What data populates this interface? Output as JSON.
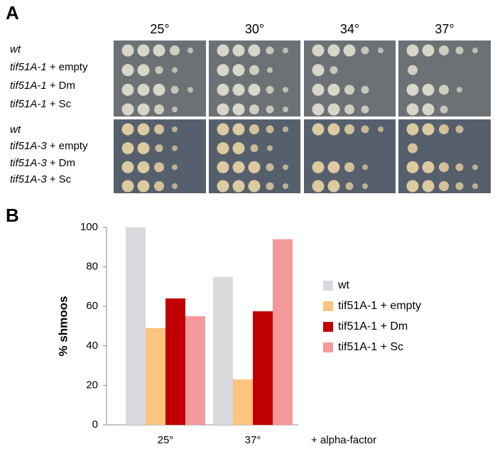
{
  "panel_a": {
    "label": "A",
    "temperatures": [
      "25°",
      "30°",
      "34°",
      "37°"
    ],
    "rows": [
      [
        "wt"
      ],
      [
        "tif51A-1",
        "+ empty"
      ],
      [
        "tif51A-1",
        "+ Dm"
      ],
      [
        "tif51A-1",
        "+ Sc"
      ],
      [
        "wt"
      ],
      [
        "tif51A-3",
        "+ empty"
      ],
      [
        "tif51A-3",
        "+ Dm"
      ],
      [
        "tif51A-3",
        "+ Sc"
      ]
    ]
  },
  "panel_b": {
    "label": "B"
  },
  "chart_data": {
    "type": "bar",
    "ylabel": "% shmoos",
    "annotation": "+ alpha-factor",
    "categories": [
      "25°",
      "37°"
    ],
    "series": [
      {
        "name": "wt",
        "color": "#d9d9de",
        "values": [
          100,
          75
        ]
      },
      {
        "name": "tif51A-1 + empty",
        "color": "#fcc47f",
        "values": [
          49,
          23
        ]
      },
      {
        "name": "tif51A-1 + Dm",
        "color": "#c00000",
        "values": [
          64,
          57.5
        ]
      },
      {
        "name": "tif51A-1 + Sc",
        "color": "#f4999b",
        "values": [
          55,
          94
        ]
      }
    ],
    "ylim": [
      0,
      100
    ],
    "yticks": [
      0,
      20,
      40,
      60,
      80,
      100
    ],
    "legend": "right"
  }
}
